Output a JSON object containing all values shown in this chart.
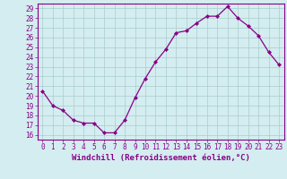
{
  "x": [
    0,
    1,
    2,
    3,
    4,
    5,
    6,
    7,
    8,
    9,
    10,
    11,
    12,
    13,
    14,
    15,
    16,
    17,
    18,
    19,
    20,
    21,
    22,
    23
  ],
  "y": [
    20.5,
    19.0,
    18.5,
    17.5,
    17.2,
    17.2,
    16.2,
    16.2,
    17.5,
    19.8,
    21.8,
    23.5,
    24.8,
    26.5,
    26.7,
    27.5,
    28.2,
    28.2,
    29.2,
    28.0,
    27.2,
    26.2,
    24.5,
    23.2
  ],
  "line_color": "#880088",
  "marker": "D",
  "markersize": 2.0,
  "linewidth": 0.9,
  "xlabel": "Windchill (Refroidissement éolien,°C)",
  "xlabel_fontsize": 6.5,
  "ylabel_ticks": [
    16,
    17,
    18,
    19,
    20,
    21,
    22,
    23,
    24,
    25,
    26,
    27,
    28,
    29
  ],
  "xlim": [
    -0.5,
    23.5
  ],
  "ylim": [
    15.5,
    29.5
  ],
  "bg_color": "#d4edf0",
  "grid_color": "#aacccc",
  "tick_fontsize": 5.5,
  "xtick_labels": [
    "0",
    "1",
    "2",
    "3",
    "4",
    "5",
    "6",
    "7",
    "8",
    "9",
    "10",
    "11",
    "12",
    "13",
    "14",
    "15",
    "16",
    "17",
    "18",
    "19",
    "20",
    "21",
    "22",
    "23"
  ]
}
